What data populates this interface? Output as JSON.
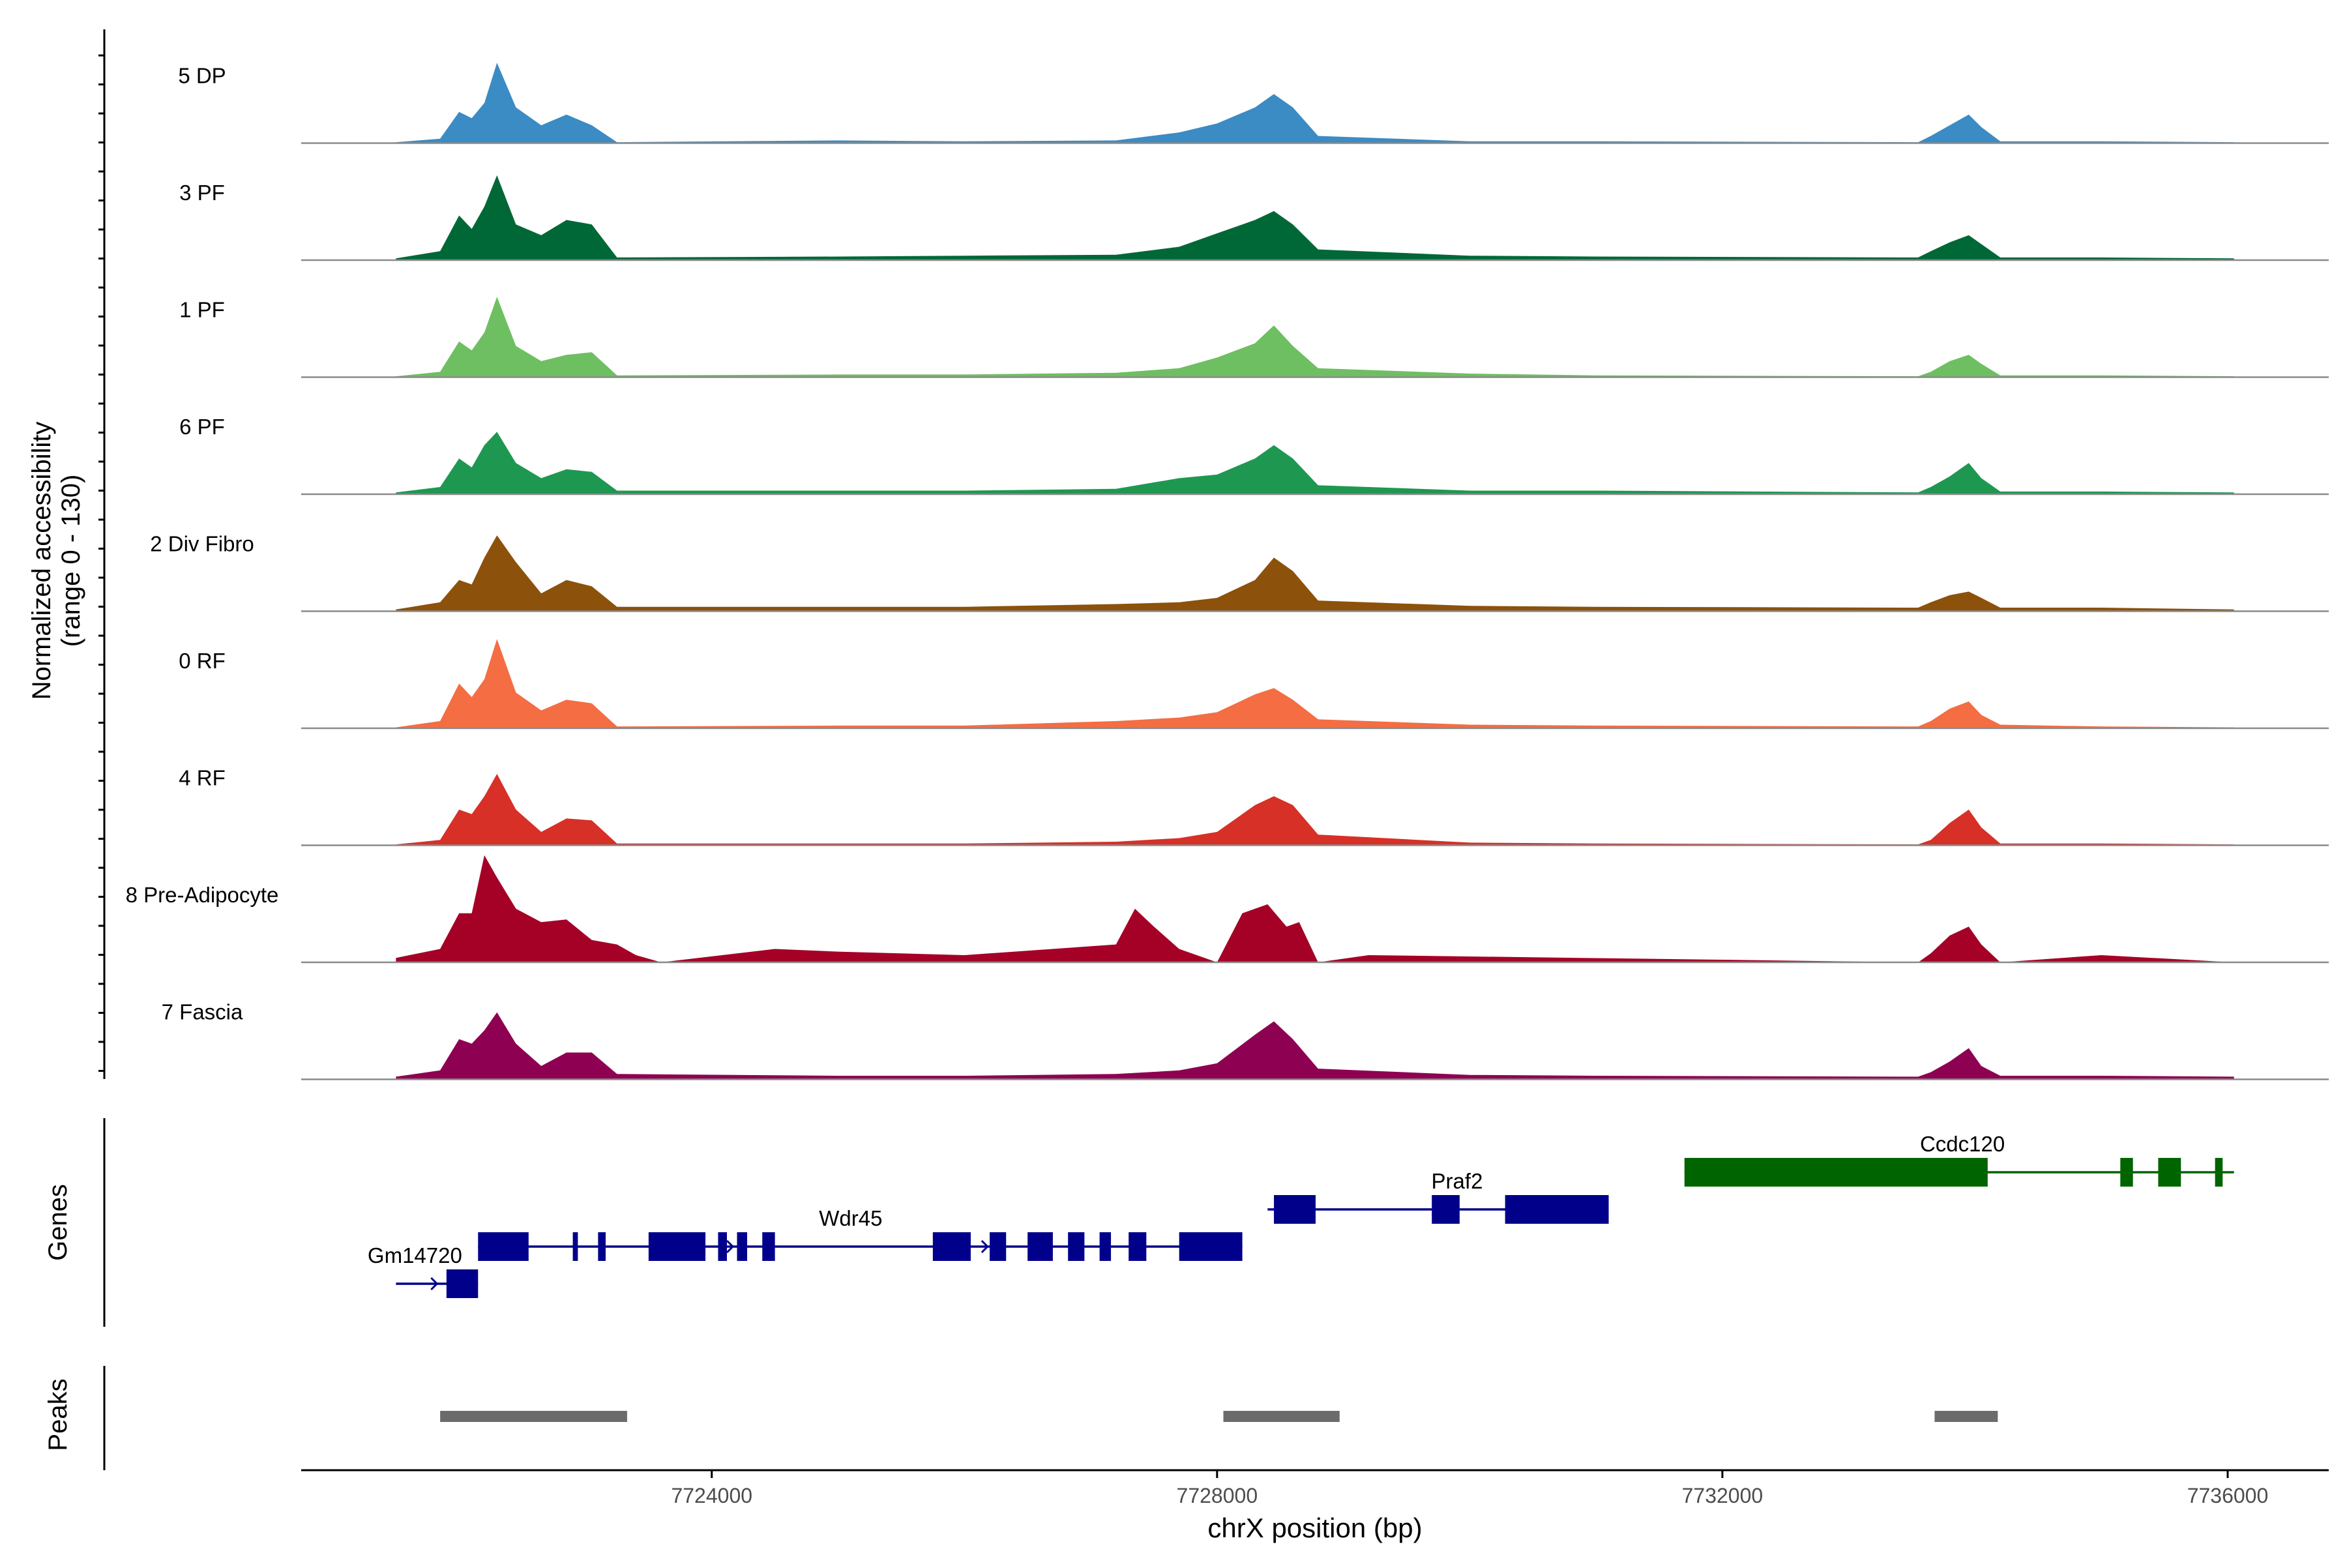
{
  "chart_data": {
    "type": "area",
    "title": "",
    "xlabel": "chrX position (bp)",
    "ylabel_line1": "Normalized accessibility",
    "ylabel_line2": "(range 0 - 130)",
    "y_range": [
      0,
      130
    ],
    "x_range": [
      7720750,
      7736800
    ],
    "x_ticks": [
      7724000,
      7728000,
      7732000,
      7736000
    ],
    "x_tick_labels": [
      "7724000",
      "7728000",
      "7732000",
      "7736000"
    ],
    "track_label_genes": "Genes",
    "track_label_peaks": "Peaks",
    "series": [
      {
        "name": "5 DP",
        "color": "#3b8bc4",
        "x": [
          7721500,
          7721850,
          7722000,
          7722100,
          7722200,
          7722300,
          7722450,
          7722650,
          7722850,
          7723050,
          7723250,
          7725000,
          7726000,
          7727200,
          7727700,
          7728000,
          7728300,
          7728450,
          7728600,
          7728800,
          7730000,
          7731000,
          7733550,
          7733650,
          7733800,
          7733950,
          7734050,
          7734200,
          7735000,
          7736050
        ],
        "values": [
          1,
          5,
          35,
          28,
          45,
          90,
          40,
          20,
          32,
          20,
          1,
          3,
          2,
          3,
          12,
          22,
          40,
          55,
          40,
          8,
          2,
          2,
          1,
          8,
          20,
          32,
          18,
          2,
          2,
          1
        ]
      },
      {
        "name": "3 PF",
        "color": "#006837",
        "x": [
          7721500,
          7721850,
          7722000,
          7722100,
          7722200,
          7722300,
          7722450,
          7722650,
          7722850,
          7723050,
          7723250,
          7725000,
          7726000,
          7727200,
          7727700,
          7728000,
          7728300,
          7728450,
          7728600,
          7728800,
          7730000,
          7731000,
          7733550,
          7733650,
          7733800,
          7733950,
          7734050,
          7734200,
          7735000,
          7736050
        ],
        "values": [
          2,
          10,
          50,
          35,
          60,
          95,
          40,
          28,
          45,
          40,
          3,
          4,
          5,
          6,
          15,
          30,
          45,
          55,
          40,
          12,
          5,
          4,
          3,
          10,
          20,
          28,
          18,
          3,
          3,
          2
        ]
      },
      {
        "name": "1 PF",
        "color": "#6ebf61",
        "x": [
          7721500,
          7721850,
          7722000,
          7722100,
          7722200,
          7722300,
          7722450,
          7722650,
          7722850,
          7723050,
          7723250,
          7725000,
          7726000,
          7727200,
          7727700,
          7728000,
          7728300,
          7728450,
          7728600,
          7728800,
          7730000,
          7731000,
          7733550,
          7733650,
          7733800,
          7733950,
          7734050,
          7734200,
          7735000,
          7736050
        ],
        "values": [
          1,
          6,
          40,
          30,
          50,
          90,
          35,
          18,
          25,
          28,
          2,
          3,
          3,
          5,
          10,
          22,
          38,
          58,
          35,
          10,
          4,
          2,
          1,
          6,
          18,
          25,
          15,
          2,
          2,
          1
        ]
      },
      {
        "name": "6 PF",
        "color": "#1e9850",
        "x": [
          7721500,
          7721850,
          7722000,
          7722100,
          7722200,
          7722300,
          7722450,
          7722650,
          7722850,
          7723050,
          7723250,
          7725000,
          7726000,
          7727200,
          7727700,
          7728000,
          7728300,
          7728450,
          7728600,
          7728800,
          7730000,
          7731000,
          7733550,
          7733650,
          7733800,
          7733950,
          7734050,
          7734200,
          7735000,
          7736050
        ],
        "values": [
          2,
          8,
          40,
          30,
          55,
          70,
          35,
          18,
          28,
          25,
          4,
          4,
          4,
          6,
          18,
          22,
          40,
          55,
          40,
          10,
          4,
          4,
          2,
          8,
          20,
          35,
          18,
          3,
          3,
          2
        ]
      },
      {
        "name": "2 Div Fibro",
        "color": "#8c510a",
        "x": [
          7721500,
          7721850,
          7722000,
          7722100,
          7722200,
          7722300,
          7722450,
          7722650,
          7722850,
          7723050,
          7723250,
          7725000,
          7726000,
          7727200,
          7727700,
          7728000,
          7728300,
          7728450,
          7728600,
          7728800,
          7730000,
          7731000,
          7733550,
          7733650,
          7733800,
          7733950,
          7734050,
          7734200,
          7735000,
          7736050
        ],
        "values": [
          2,
          10,
          35,
          30,
          60,
          85,
          55,
          20,
          35,
          28,
          5,
          5,
          5,
          8,
          10,
          15,
          35,
          60,
          45,
          12,
          6,
          5,
          4,
          10,
          18,
          22,
          15,
          4,
          4,
          2
        ]
      },
      {
        "name": "0 RF",
        "color": "#f46d43",
        "x": [
          7721500,
          7721850,
          7722000,
          7722100,
          7722200,
          7722300,
          7722450,
          7722650,
          7722850,
          7723050,
          7723250,
          7725000,
          7726000,
          7727200,
          7727700,
          7728000,
          7728300,
          7728450,
          7728600,
          7728800,
          7730000,
          7731000,
          7733550,
          7733650,
          7733800,
          7733950,
          7734050,
          7734200,
          7735000,
          7736050
        ],
        "values": [
          1,
          8,
          50,
          35,
          55,
          100,
          40,
          20,
          32,
          28,
          2,
          3,
          3,
          8,
          12,
          18,
          38,
          45,
          32,
          10,
          4,
          3,
          2,
          8,
          22,
          30,
          15,
          4,
          2,
          1
        ]
      },
      {
        "name": "4 RF",
        "color": "#d73027",
        "x": [
          7721500,
          7721850,
          7722000,
          7722100,
          7722200,
          7722300,
          7722450,
          7722650,
          7722850,
          7723050,
          7723250,
          7725000,
          7726000,
          7727200,
          7727700,
          7728000,
          7728300,
          7728450,
          7728600,
          7728800,
          7730000,
          7731000,
          7733550,
          7733650,
          7733800,
          7733950,
          7734050,
          7734200,
          7735000,
          7736050
        ],
        "values": [
          1,
          6,
          40,
          35,
          55,
          80,
          40,
          15,
          30,
          28,
          2,
          2,
          2,
          4,
          8,
          15,
          45,
          55,
          45,
          12,
          3,
          2,
          1,
          6,
          25,
          40,
          20,
          2,
          2,
          1
        ]
      },
      {
        "name": "8 Pre-Adipocyte",
        "color": "#a50026",
        "x": [
          7721500,
          7721850,
          7722000,
          7722100,
          7722200,
          7722300,
          7722450,
          7722650,
          7722850,
          7723050,
          7723250,
          7723400,
          7723600,
          7724500,
          7725000,
          7726000,
          7727200,
          7727350,
          7727500,
          7727700,
          7728000,
          7728200,
          7728400,
          7728550,
          7728650,
          7728800,
          7729200,
          7733550,
          7733650,
          7733800,
          7733950,
          7734050,
          7734200,
          7735000,
          7736050
        ],
        "values": [
          5,
          15,
          55,
          55,
          120,
          95,
          60,
          45,
          48,
          25,
          20,
          8,
          0,
          15,
          12,
          8,
          20,
          60,
          40,
          15,
          0,
          55,
          65,
          40,
          45,
          0,
          8,
          0,
          10,
          30,
          40,
          20,
          0,
          8,
          0
        ]
      },
      {
        "name": "7 Fascia",
        "color": "#8e0152",
        "x": [
          7721500,
          7721850,
          7722000,
          7722100,
          7722200,
          7722300,
          7722450,
          7722650,
          7722850,
          7723050,
          7723250,
          7725000,
          7726000,
          7727200,
          7727700,
          7728000,
          7728300,
          7728450,
          7728600,
          7728800,
          7730000,
          7731000,
          7733550,
          7733650,
          7733800,
          7733950,
          7734050,
          7734200,
          7735000,
          7736050
        ],
        "values": [
          3,
          10,
          45,
          40,
          55,
          75,
          40,
          15,
          30,
          30,
          6,
          4,
          4,
          6,
          10,
          18,
          50,
          65,
          45,
          12,
          5,
          4,
          3,
          8,
          20,
          35,
          15,
          4,
          4,
          3
        ]
      }
    ],
    "genes": [
      {
        "name": "Wdr45",
        "color": "#00008b",
        "strand": "+",
        "row": 3,
        "start": 7722150,
        "end": 7728200,
        "label_pos": 7725100,
        "exons": [
          [
            7722150,
            7722550
          ],
          [
            7722900,
            7722940
          ],
          [
            7723100,
            7723160
          ],
          [
            7723500,
            7723950
          ],
          [
            7724050,
            7724120
          ],
          [
            7724200,
            7724280
          ],
          [
            7724400,
            7724500
          ],
          [
            7725750,
            7726050
          ],
          [
            7726200,
            7726330
          ],
          [
            7726500,
            7726700
          ],
          [
            7726820,
            7726950
          ],
          [
            7727070,
            7727160
          ],
          [
            7727300,
            7727440
          ],
          [
            7727700,
            7728200
          ]
        ]
      },
      {
        "name": "Gm14720",
        "color": "#00008b",
        "strand": "+",
        "row": 4,
        "start": 7721500,
        "end": 7722150,
        "label_pos": 7721650,
        "exons": [
          [
            7721900,
            7722150
          ]
        ]
      },
      {
        "name": "Praf2",
        "color": "#00008b",
        "strand": "+",
        "row": 2,
        "start": 7728400,
        "end": 7731100,
        "label_pos": 7729900,
        "exons": [
          [
            7728450,
            7728780
          ],
          [
            7729700,
            7729920
          ],
          [
            7730280,
            7731100
          ]
        ]
      },
      {
        "name": "Ccdc120",
        "color": "#006400",
        "strand": "-",
        "row": 1,
        "start": 7731700,
        "end": 7736050,
        "label_pos": 7733900,
        "exons": [
          [
            7731700,
            7734100
          ],
          [
            7735150,
            7735250
          ],
          [
            7735450,
            7735630
          ],
          [
            7735900,
            7735960
          ]
        ]
      }
    ],
    "peaks": [
      [
        7721850,
        7723330
      ],
      [
        7728050,
        7728970
      ],
      [
        7733680,
        7734180
      ]
    ]
  }
}
